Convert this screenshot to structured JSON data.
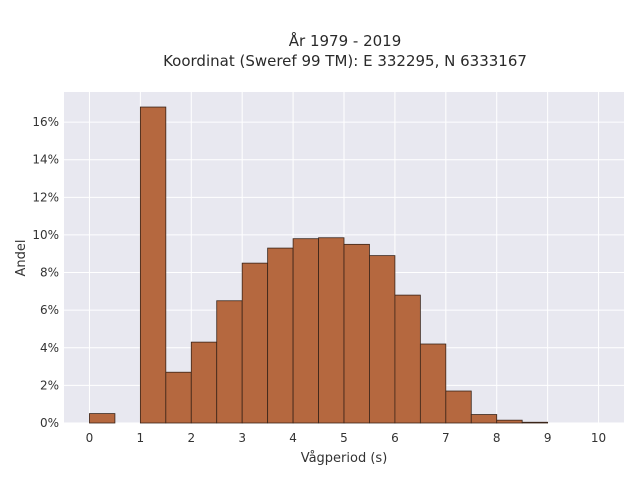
{
  "chart_data": {
    "type": "bar",
    "title": "År 1979 - 2019",
    "subtitle": "Koordinat (Sweref 99 TM): E 332295, N 6333167",
    "xlabel": "Vågperiod (s)",
    "ylabel": "Andel",
    "xlim": [
      -0.5,
      10.5
    ],
    "ylim": [
      0,
      17.6
    ],
    "x_ticks": [
      "0",
      "1",
      "2",
      "3",
      "4",
      "5",
      "6",
      "7",
      "8",
      "9",
      "10"
    ],
    "y_ticks": [
      "0%",
      "2%",
      "4%",
      "6%",
      "8%",
      "10%",
      "12%",
      "14%",
      "16%"
    ],
    "y_tick_values": [
      0,
      2,
      4,
      6,
      8,
      10,
      12,
      14,
      16
    ],
    "bin_width": 0.5,
    "bins": [
      {
        "start": 0.0,
        "value": 0.5
      },
      {
        "start": 0.5,
        "value": 0.0
      },
      {
        "start": 1.0,
        "value": 16.8
      },
      {
        "start": 1.5,
        "value": 2.7
      },
      {
        "start": 2.0,
        "value": 4.3
      },
      {
        "start": 2.5,
        "value": 6.5
      },
      {
        "start": 3.0,
        "value": 8.5
      },
      {
        "start": 3.5,
        "value": 9.3
      },
      {
        "start": 4.0,
        "value": 9.8
      },
      {
        "start": 4.5,
        "value": 9.85
      },
      {
        "start": 5.0,
        "value": 9.5
      },
      {
        "start": 5.5,
        "value": 8.9
      },
      {
        "start": 6.0,
        "value": 6.8
      },
      {
        "start": 6.5,
        "value": 4.2
      },
      {
        "start": 7.0,
        "value": 1.7
      },
      {
        "start": 7.5,
        "value": 0.45
      },
      {
        "start": 8.0,
        "value": 0.15
      },
      {
        "start": 8.5,
        "value": 0.04
      }
    ],
    "bar_color": "#b5683f",
    "bar_edge_color": "#3a2418",
    "plot_background": "#e8e8f0",
    "grid": true,
    "grid_color": "#ffffff"
  }
}
